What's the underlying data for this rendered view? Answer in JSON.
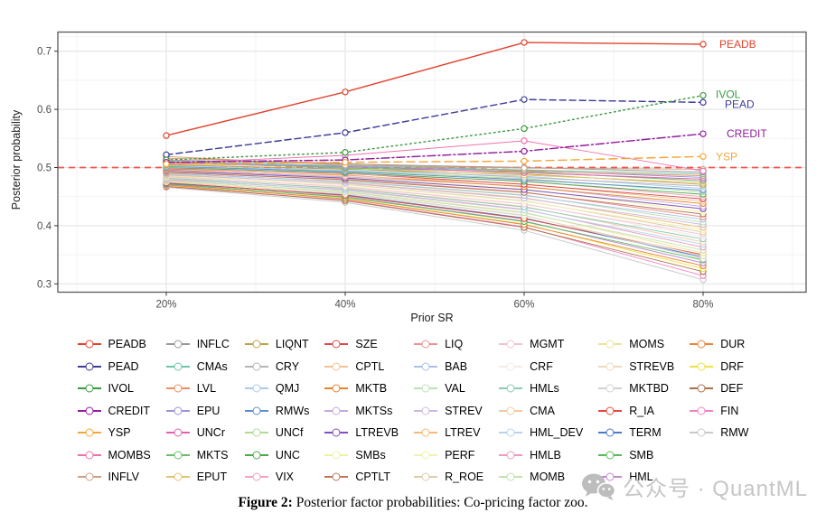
{
  "figure": {
    "caption_prefix": "Figure 2:",
    "caption_text": " Posterior factor probabilities: Co-pricing factor zoo."
  },
  "watermark": {
    "text": "公众号 · QuantML",
    "icon": "wechat-icon",
    "color": "#c6c6c6"
  },
  "chart_data": {
    "type": "line",
    "title": "",
    "xlabel": "Prior SR",
    "ylabel": "Posterior probability",
    "x_tick_labels": [
      "20%",
      "40%",
      "60%",
      "80%"
    ],
    "x_values": [
      20,
      40,
      60,
      80
    ],
    "y_ticks": [
      0.3,
      0.4,
      0.5,
      0.6,
      0.7
    ],
    "ylim": [
      0.286,
      0.733
    ],
    "grid": true,
    "legend_position": "bottom",
    "legend_columns": 8,
    "legend_rows": 7,
    "reference_line": {
      "y": 0.5,
      "color": "#f4564e",
      "dash": "dashed"
    },
    "panel_border_color": "#59595b",
    "series": [
      {
        "name": "PEADB",
        "color": "#e1432d",
        "dash": "solid",
        "end_label": true,
        "label_offset": [
          18,
          4
        ],
        "values": [
          0.555,
          0.63,
          0.715,
          0.712
        ]
      },
      {
        "name": "PEAD",
        "color": "#3f3c98",
        "dash": "dashed",
        "end_label": true,
        "label_offset": [
          24,
          6
        ],
        "values": [
          0.522,
          0.56,
          0.617,
          0.612
        ]
      },
      {
        "name": "IVOL",
        "color": "#3a9a3f",
        "dash": "dotted",
        "end_label": true,
        "label_offset": [
          14,
          3
        ],
        "values": [
          0.513,
          0.526,
          0.567,
          0.624
        ]
      },
      {
        "name": "CREDIT",
        "color": "#911d9e",
        "dash": "dashdot",
        "end_label": true,
        "label_offset": [
          26,
          4
        ],
        "values": [
          0.509,
          0.513,
          0.528,
          0.558
        ]
      },
      {
        "name": "YSP",
        "color": "#f4a63b",
        "dash": "longdash",
        "end_label": true,
        "label_offset": [
          14,
          4
        ],
        "values": [
          0.506,
          0.509,
          0.511,
          0.519
        ]
      },
      {
        "name": "MOMBS",
        "color": "#ee72ae",
        "dash": "solid",
        "end_label": false,
        "values": [
          0.507,
          0.521,
          0.546,
          0.494
        ]
      },
      {
        "name": "INFLV",
        "color": "#cfa184",
        "dash": "solid",
        "end_label": false,
        "values": [
          0.519,
          0.504,
          0.499,
          0.497
        ]
      },
      {
        "name": "INFLC",
        "color": "#999999",
        "dash": "solid",
        "end_label": false,
        "values": [
          0.513,
          0.506,
          0.5,
          0.492
        ]
      },
      {
        "name": "CMAs",
        "color": "#6ec6a6",
        "dash": "solid",
        "end_label": false,
        "values": [
          0.511,
          0.503,
          0.496,
          0.489
        ]
      },
      {
        "name": "LVL",
        "color": "#ea8d60",
        "dash": "solid",
        "end_label": false,
        "values": [
          0.516,
          0.507,
          0.494,
          0.486
        ]
      },
      {
        "name": "EPU",
        "color": "#9c92d6",
        "dash": "solid",
        "end_label": false,
        "values": [
          0.509,
          0.501,
          0.495,
          0.483
        ]
      },
      {
        "name": "UNCr",
        "color": "#e361ad",
        "dash": "solid",
        "end_label": false,
        "values": [
          0.508,
          0.502,
          0.491,
          0.48
        ]
      },
      {
        "name": "MKTS",
        "color": "#6cbe6c",
        "dash": "solid",
        "end_label": false,
        "values": [
          0.51,
          0.499,
          0.493,
          0.477
        ]
      },
      {
        "name": "EPUT",
        "color": "#e3c36e",
        "dash": "solid",
        "end_label": false,
        "values": [
          0.507,
          0.5,
          0.487,
          0.474
        ]
      },
      {
        "name": "LIQNT",
        "color": "#c0a148",
        "dash": "solid",
        "end_label": false,
        "values": [
          0.505,
          0.497,
          0.489,
          0.471
        ]
      },
      {
        "name": "CRY",
        "color": "#b5b5b5",
        "dash": "solid",
        "end_label": false,
        "values": [
          0.504,
          0.498,
          0.483,
          0.468
        ]
      },
      {
        "name": "QMJ",
        "color": "#aacbea",
        "dash": "solid",
        "end_label": false,
        "values": [
          0.503,
          0.495,
          0.485,
          0.464
        ]
      },
      {
        "name": "RMWs",
        "color": "#5b90d2",
        "dash": "solid",
        "end_label": false,
        "values": [
          0.502,
          0.493,
          0.479,
          0.461
        ]
      },
      {
        "name": "UNCf",
        "color": "#b2da91",
        "dash": "solid",
        "end_label": false,
        "values": [
          0.501,
          0.494,
          0.481,
          0.458
        ]
      },
      {
        "name": "UNC",
        "color": "#4bab4b",
        "dash": "solid",
        "end_label": false,
        "values": [
          0.5,
          0.491,
          0.476,
          0.454
        ]
      },
      {
        "name": "VIX",
        "color": "#f3a3bb",
        "dash": "solid",
        "end_label": false,
        "values": [
          0.499,
          0.489,
          0.477,
          0.45
        ]
      },
      {
        "name": "SZE",
        "color": "#da4a4a",
        "dash": "solid",
        "end_label": false,
        "values": [
          0.498,
          0.49,
          0.471,
          0.446
        ]
      },
      {
        "name": "CPTL",
        "color": "#f3c291",
        "dash": "solid",
        "end_label": false,
        "values": [
          0.497,
          0.486,
          0.472,
          0.442
        ]
      },
      {
        "name": "MKTB",
        "color": "#e9822b",
        "dash": "solid",
        "end_label": false,
        "values": [
          0.496,
          0.487,
          0.467,
          0.438
        ]
      },
      {
        "name": "MKTSs",
        "color": "#c2aadb",
        "dash": "solid",
        "end_label": false,
        "values": [
          0.495,
          0.484,
          0.468,
          0.433
        ]
      },
      {
        "name": "LTREVB",
        "color": "#7d52bc",
        "dash": "solid",
        "end_label": false,
        "values": [
          0.494,
          0.482,
          0.462,
          0.429
        ]
      },
      {
        "name": "SMBs",
        "color": "#f1f1a0",
        "dash": "solid",
        "end_label": false,
        "values": [
          0.493,
          0.483,
          0.463,
          0.424
        ]
      },
      {
        "name": "CPTLT",
        "color": "#bb795a",
        "dash": "solid",
        "end_label": false,
        "values": [
          0.492,
          0.479,
          0.457,
          0.42
        ]
      },
      {
        "name": "LIQ",
        "color": "#eb9292",
        "dash": "solid",
        "end_label": false,
        "values": [
          0.491,
          0.48,
          0.458,
          0.415
        ]
      },
      {
        "name": "BAB",
        "color": "#aac1e2",
        "dash": "solid",
        "end_label": false,
        "values": [
          0.49,
          0.476,
          0.452,
          0.411
        ]
      },
      {
        "name": "VAL",
        "color": "#b9e2b2",
        "dash": "solid",
        "end_label": false,
        "values": [
          0.489,
          0.477,
          0.453,
          0.406
        ]
      },
      {
        "name": "STREV",
        "color": "#cbbae2",
        "dash": "solid",
        "end_label": false,
        "values": [
          0.488,
          0.473,
          0.447,
          0.402
        ]
      },
      {
        "name": "LTREV",
        "color": "#f3ba79",
        "dash": "solid",
        "end_label": false,
        "values": [
          0.487,
          0.474,
          0.448,
          0.397
        ]
      },
      {
        "name": "PERF",
        "color": "#f1f1b2",
        "dash": "solid",
        "end_label": false,
        "values": [
          0.486,
          0.47,
          0.442,
          0.393
        ]
      },
      {
        "name": "R_ROE",
        "color": "#e2cbaa",
        "dash": "solid",
        "end_label": false,
        "values": [
          0.485,
          0.471,
          0.443,
          0.389
        ]
      },
      {
        "name": "MGMT",
        "color": "#f3c2d2",
        "dash": "solid",
        "end_label": false,
        "values": [
          0.484,
          0.467,
          0.437,
          0.385
        ]
      },
      {
        "name": "CRF",
        "color": "#f3eae2",
        "dash": "solid",
        "end_label": false,
        "values": [
          0.483,
          0.468,
          0.438,
          0.381
        ]
      },
      {
        "name": "HMLs",
        "color": "#8acbba",
        "dash": "solid",
        "end_label": false,
        "values": [
          0.482,
          0.464,
          0.432,
          0.377
        ]
      },
      {
        "name": "CMA",
        "color": "#f3caa1",
        "dash": "solid",
        "end_label": false,
        "values": [
          0.481,
          0.465,
          0.433,
          0.372
        ]
      },
      {
        "name": "HML_DEV",
        "color": "#bad2eb",
        "dash": "solid",
        "end_label": false,
        "values": [
          0.48,
          0.461,
          0.427,
          0.368
        ]
      },
      {
        "name": "HMLB",
        "color": "#eb9ac2",
        "dash": "solid",
        "end_label": false,
        "values": [
          0.479,
          0.462,
          0.428,
          0.363
        ]
      },
      {
        "name": "MOMB",
        "color": "#c2e2aa",
        "dash": "solid",
        "end_label": false,
        "values": [
          0.478,
          0.458,
          0.422,
          0.358
        ]
      },
      {
        "name": "MOMS",
        "color": "#efe29a",
        "dash": "solid",
        "end_label": false,
        "values": [
          0.477,
          0.459,
          0.423,
          0.353
        ]
      },
      {
        "name": "STREVB",
        "color": "#ebdaba",
        "dash": "solid",
        "end_label": false,
        "values": [
          0.476,
          0.455,
          0.417,
          0.348
        ]
      },
      {
        "name": "MKTBD",
        "color": "#d2d2d2",
        "dash": "solid",
        "end_label": false,
        "values": [
          0.475,
          0.456,
          0.418,
          0.343
        ]
      },
      {
        "name": "R_IA",
        "color": "#e3493a",
        "dash": "solid",
        "end_label": false,
        "values": [
          0.474,
          0.452,
          0.412,
          0.35
        ]
      },
      {
        "name": "TERM",
        "color": "#4979cb",
        "dash": "solid",
        "end_label": false,
        "values": [
          0.473,
          0.453,
          0.413,
          0.346
        ]
      },
      {
        "name": "SMB",
        "color": "#5abb5a",
        "dash": "solid",
        "end_label": false,
        "values": [
          0.472,
          0.449,
          0.407,
          0.341
        ]
      },
      {
        "name": "HML",
        "color": "#c28acb",
        "dash": "solid",
        "end_label": false,
        "values": [
          0.471,
          0.45,
          0.408,
          0.336
        ]
      },
      {
        "name": "DUR",
        "color": "#eb843d",
        "dash": "solid",
        "end_label": false,
        "values": [
          0.47,
          0.446,
          0.402,
          0.331
        ]
      },
      {
        "name": "DRF",
        "color": "#ebe349",
        "dash": "solid",
        "end_label": false,
        "values": [
          0.469,
          0.447,
          0.403,
          0.326
        ]
      },
      {
        "name": "DEF",
        "color": "#aa7148",
        "dash": "solid",
        "end_label": false,
        "values": [
          0.468,
          0.443,
          0.397,
          0.321
        ]
      },
      {
        "name": "FIN",
        "color": "#f382c2",
        "dash": "solid",
        "end_label": false,
        "values": [
          0.467,
          0.444,
          0.398,
          0.314
        ]
      },
      {
        "name": "RMW",
        "color": "#c9c9c9",
        "dash": "solid",
        "end_label": false,
        "values": [
          0.466,
          0.44,
          0.392,
          0.307
        ]
      }
    ]
  }
}
